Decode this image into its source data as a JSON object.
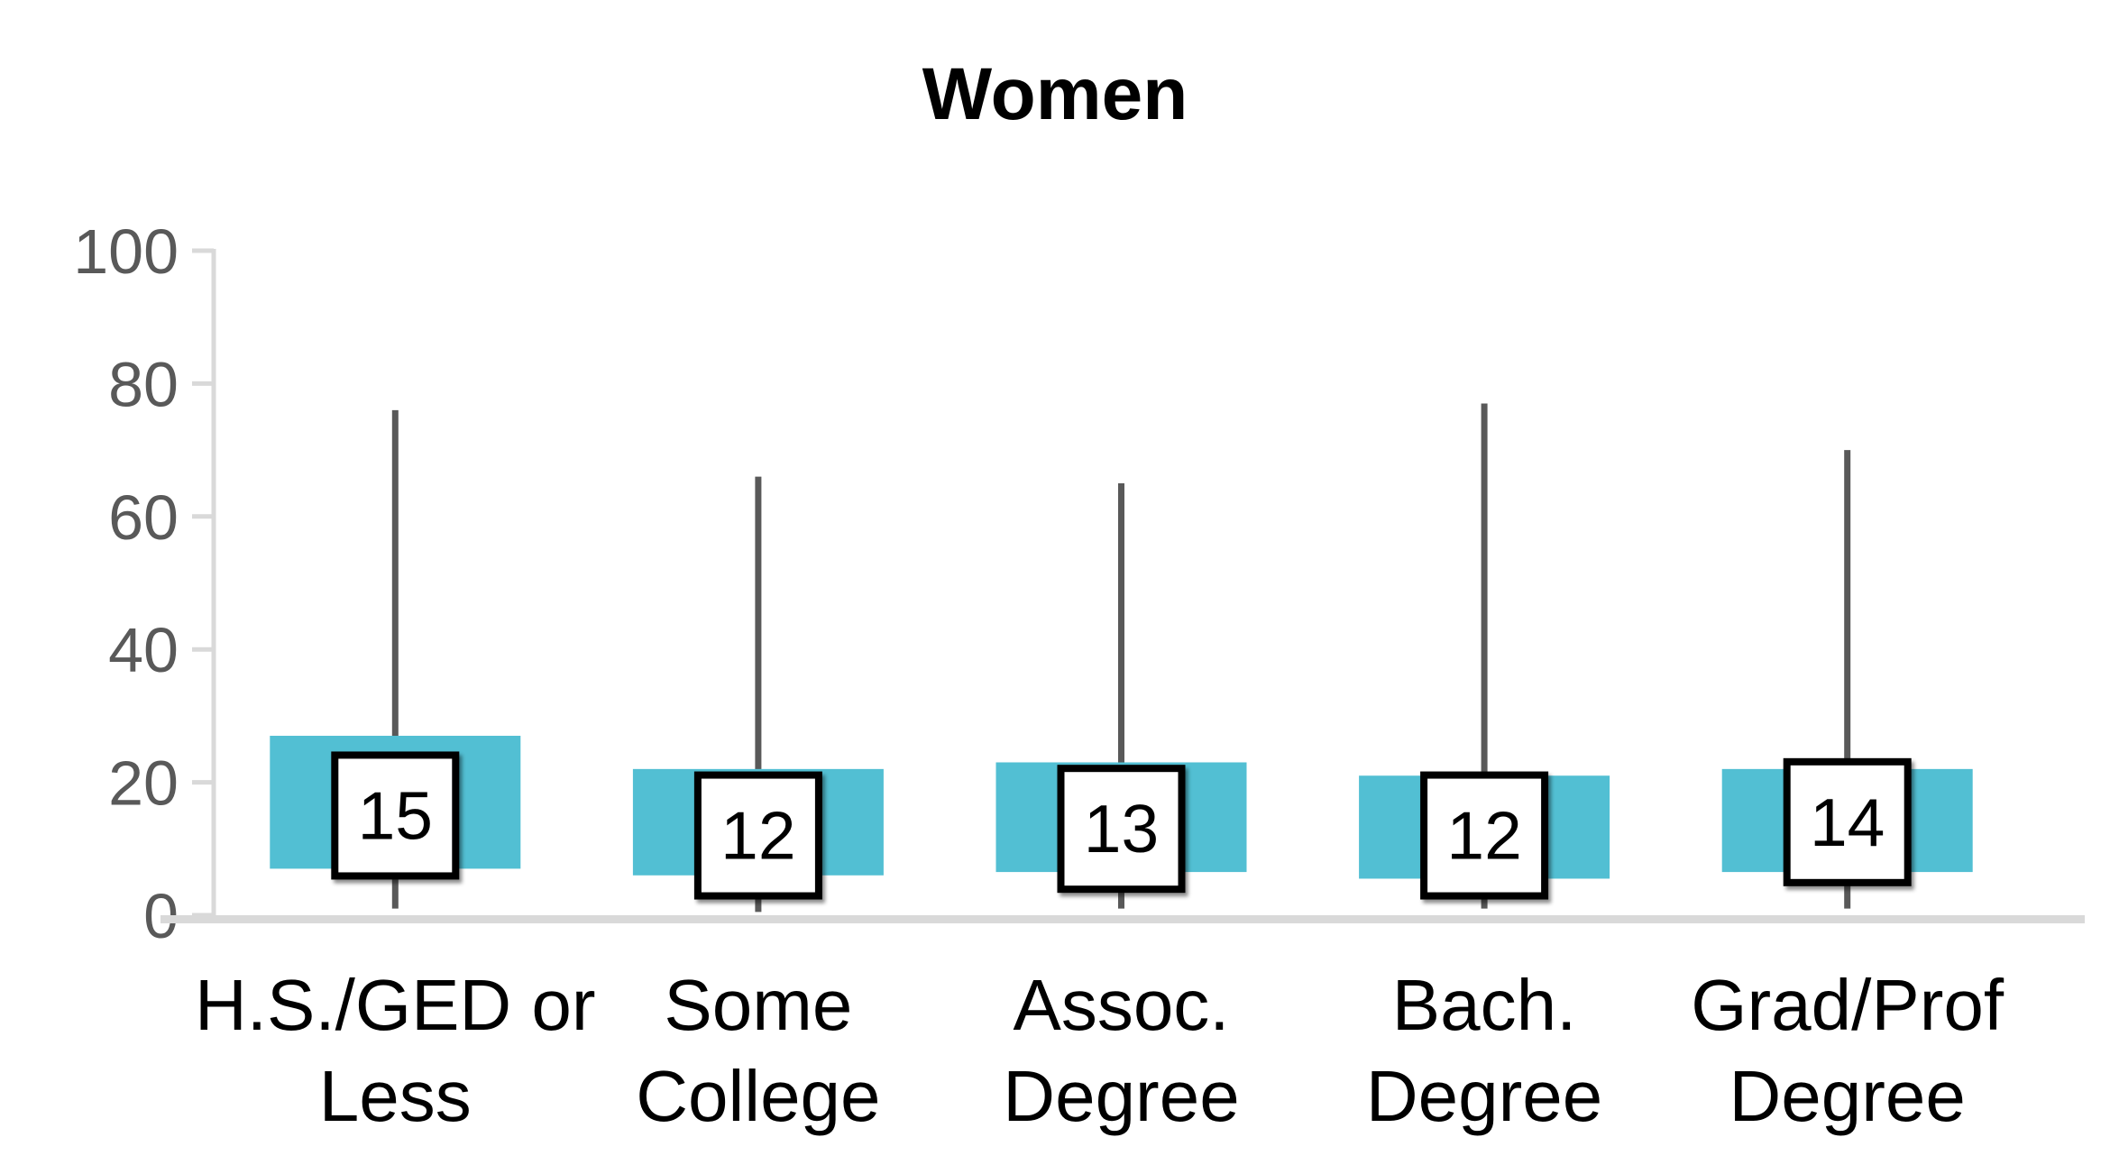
{
  "page": {
    "background": "#FFFFFF"
  },
  "chart": {
    "title": "Women"
  },
  "chart_data": {
    "type": "boxplot",
    "title": "Women",
    "orientation": "vertical",
    "categories": [
      "H.S./GED or Less",
      "Some College",
      "Assoc. Degree",
      "Bach. Degree",
      "Grad/Prof Degree"
    ],
    "category_label_lines": [
      [
        "H.S./GED or",
        "Less"
      ],
      [
        "Some",
        "College"
      ],
      [
        "Assoc.",
        "Degree"
      ],
      [
        "Bach.",
        "Degree"
      ],
      [
        "Grad/Prof",
        "Degree"
      ]
    ],
    "boxes": [
      {
        "category": "H.S./GED or Less",
        "whisker_low": 1,
        "q1": 7,
        "median": 15,
        "q3": 27,
        "whisker_high": 76,
        "median_label": "15"
      },
      {
        "category": "Some College",
        "whisker_low": 0.5,
        "q1": 6,
        "median": 12,
        "q3": 22,
        "whisker_high": 66,
        "median_label": "12"
      },
      {
        "category": "Assoc. Degree",
        "whisker_low": 1,
        "q1": 6.5,
        "median": 13,
        "q3": 23,
        "whisker_high": 65,
        "median_label": "13"
      },
      {
        "category": "Bach. Degree",
        "whisker_low": 1,
        "q1": 5.5,
        "median": 12,
        "q3": 21,
        "whisker_high": 77,
        "median_label": "12"
      },
      {
        "category": "Grad/Prof Degree",
        "whisker_low": 1,
        "q1": 6.5,
        "median": 14,
        "q3": 22,
        "whisker_high": 70,
        "median_label": "14"
      }
    ],
    "ylim": [
      0,
      100
    ],
    "yticks": [
      0,
      20,
      40,
      60,
      80,
      100
    ],
    "ytick_labels": [
      "0",
      "20",
      "40",
      "60",
      "80",
      "100"
    ],
    "xlabel": "",
    "ylabel": "",
    "grid": false,
    "legend": false,
    "colors": {
      "box_fill": "#52BFD3",
      "whisker": "#595959",
      "axis_line": "#D9D9D9",
      "tick_label": "#595959",
      "median_box_fill": "#FFFFFF",
      "median_box_border": "#000000",
      "title": "#000000",
      "category_label": "#000000"
    }
  }
}
